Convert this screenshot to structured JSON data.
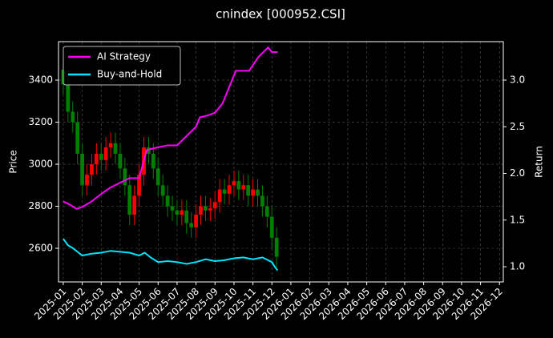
{
  "chart_data": {
    "type": "candlestick",
    "title": "cnindex [000952.CSI]",
    "ylabel": "Price",
    "y2label": "Return",
    "xlim": [
      -0.25,
      23.2
    ],
    "xticks": [
      {
        "value": 0,
        "label": "2025-01"
      },
      {
        "value": 1,
        "label": "2025-02"
      },
      {
        "value": 2,
        "label": "2025-03"
      },
      {
        "value": 3,
        "label": "2025-04"
      },
      {
        "value": 4,
        "label": "2025-05"
      },
      {
        "value": 5,
        "label": "2025-06"
      },
      {
        "value": 6,
        "label": "2025-07"
      },
      {
        "value": 7,
        "label": "2025-08"
      },
      {
        "value": 8,
        "label": "2025-09"
      },
      {
        "value": 9,
        "label": "2025-10"
      },
      {
        "value": 10,
        "label": "2025-11"
      },
      {
        "value": 11,
        "label": "2025-12"
      },
      {
        "value": 12,
        "label": "2026-01"
      },
      {
        "value": 13,
        "label": "2026-02"
      },
      {
        "value": 14,
        "label": "2026-03"
      },
      {
        "value": 15,
        "label": "2026-04"
      },
      {
        "value": 16,
        "label": "2026-05"
      },
      {
        "value": 17,
        "label": "2026-06"
      },
      {
        "value": 18,
        "label": "2026-07"
      },
      {
        "value": 19,
        "label": "2026-08"
      },
      {
        "value": 20,
        "label": "2026-09"
      },
      {
        "value": 21,
        "label": "2026-10"
      },
      {
        "value": 22,
        "label": "2026-11"
      },
      {
        "value": 23,
        "label": "2026-12"
      }
    ],
    "ylim": [
      2440,
      3583
    ],
    "yticks": [
      2600,
      2800,
      3000,
      3200,
      3400
    ],
    "y2lim": [
      0.837,
      3.412
    ],
    "y2ticks": [
      {
        "value": 1,
        "label": "1.0"
      },
      1.5,
      {
        "value": 2,
        "label": "2.0"
      },
      2.5,
      {
        "value": 3,
        "label": "3.0"
      }
    ],
    "grid": true,
    "legend": "upper left",
    "candles": {
      "up_color": "#ff0000",
      "down_color": "#008000",
      "x": [
        0,
        0.25,
        0.5,
        0.75,
        1,
        1.25,
        1.5,
        1.75,
        2,
        2.25,
        2.5,
        2.75,
        3,
        3.25,
        3.5,
        3.75,
        4,
        4.25,
        4.5,
        4.75,
        5,
        5.25,
        5.5,
        5.75,
        6,
        6.25,
        6.5,
        6.75,
        7,
        7.25,
        7.5,
        7.75,
        8,
        8.25,
        8.5,
        8.75,
        9,
        9.25,
        9.5,
        9.75,
        10,
        10.25,
        10.5,
        10.75,
        11,
        11.25
      ],
      "open": [
        3450,
        3380,
        3250,
        3200,
        3050,
        2900,
        2950,
        3000,
        3050,
        3020,
        3080,
        3100,
        3050,
        2980,
        2900,
        2760,
        2850,
        2950,
        3080,
        3050,
        2980,
        2900,
        2850,
        2800,
        2780,
        2760,
        2780,
        2720,
        2700,
        2760,
        2800,
        2780,
        2790,
        2820,
        2880,
        2860,
        2900,
        2920,
        2880,
        2900,
        2850,
        2880,
        2850,
        2800,
        2750,
        2650
      ],
      "high": [
        3500,
        3430,
        3300,
        3250,
        3100,
        3000,
        3050,
        3100,
        3100,
        3130,
        3150,
        3150,
        3100,
        3030,
        2950,
        2900,
        3000,
        3130,
        3130,
        3100,
        3030,
        2950,
        2900,
        2850,
        2830,
        2830,
        2830,
        2770,
        2810,
        2850,
        2850,
        2840,
        2870,
        2930,
        2930,
        2950,
        2970,
        2970,
        2950,
        2950,
        2930,
        2930,
        2900,
        2850,
        2800,
        2700
      ],
      "low": [
        3330,
        3200,
        3150,
        3000,
        2850,
        2850,
        2900,
        2950,
        2970,
        2970,
        3030,
        3000,
        2930,
        2850,
        2710,
        2710,
        2800,
        2900,
        3000,
        2930,
        2850,
        2800,
        2750,
        2730,
        2710,
        2710,
        2670,
        2650,
        2650,
        2710,
        2730,
        2730,
        2740,
        2770,
        2810,
        2810,
        2850,
        2830,
        2830,
        2800,
        2800,
        2800,
        2750,
        2700,
        2600,
        2510
      ],
      "close": [
        3380,
        3250,
        3200,
        3050,
        2900,
        2950,
        3000,
        3050,
        3020,
        3080,
        3100,
        3050,
        2980,
        2900,
        2760,
        2850,
        2950,
        3080,
        3050,
        2980,
        2900,
        2850,
        2800,
        2780,
        2760,
        2780,
        2720,
        2700,
        2760,
        2800,
        2780,
        2790,
        2820,
        2880,
        2860,
        2900,
        2920,
        2880,
        2900,
        2850,
        2880,
        2850,
        2800,
        2750,
        2650,
        2560
      ]
    },
    "series": [
      {
        "name": "AI Strategy",
        "color": "#ff00ff",
        "axis": "y2",
        "x": [
          0,
          0.4,
          0.7,
          1.0,
          1.5,
          2.0,
          2.5,
          3.0,
          3.5,
          4.0,
          4.4,
          5.0,
          5.5,
          6.0,
          6.5,
          7.0,
          7.2,
          7.6,
          8.0,
          8.4,
          8.7,
          9.1,
          9.5,
          9.8,
          10.3,
          10.8,
          11.0,
          11.3
        ],
        "values": [
          1.7,
          1.66,
          1.62,
          1.64,
          1.7,
          1.78,
          1.85,
          1.9,
          1.95,
          1.95,
          2.25,
          2.28,
          2.3,
          2.3,
          2.4,
          2.5,
          2.6,
          2.62,
          2.65,
          2.75,
          2.9,
          3.1,
          3.1,
          3.1,
          3.25,
          3.35,
          3.3,
          3.3
        ]
      },
      {
        "name": "Buy-and-Hold",
        "color": "#00e5ff",
        "axis": "y2",
        "x": [
          0,
          0.25,
          0.5,
          0.75,
          1,
          1.5,
          2,
          2.5,
          3,
          3.5,
          4,
          4.3,
          4.6,
          5,
          5.5,
          6,
          6.5,
          7,
          7.5,
          8,
          8.5,
          9,
          9.5,
          10,
          10.5,
          11,
          11.15,
          11.3
        ],
        "values": [
          1.3,
          1.23,
          1.2,
          1.16,
          1.12,
          1.14,
          1.15,
          1.17,
          1.16,
          1.15,
          1.12,
          1.15,
          1.1,
          1.05,
          1.06,
          1.05,
          1.03,
          1.05,
          1.08,
          1.06,
          1.07,
          1.09,
          1.1,
          1.08,
          1.1,
          1.05,
          1.0,
          0.96
        ]
      }
    ]
  }
}
